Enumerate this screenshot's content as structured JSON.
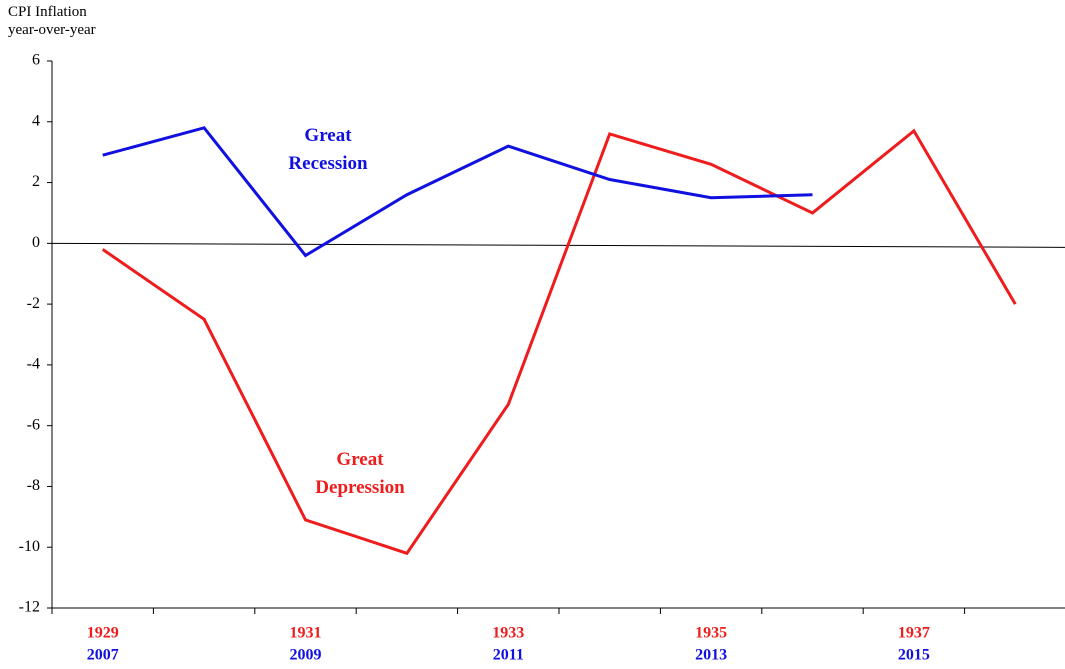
{
  "chart_data": {
    "type": "line",
    "ylabel": [
      "CPI Inflation",
      "year-over-year"
    ],
    "categories": [
      "1929",
      null,
      "1931",
      null,
      "1933",
      null,
      "1935",
      null,
      "1937",
      null
    ],
    "categories_secondary": [
      "2007",
      null,
      "2009",
      null,
      "2011",
      null,
      "2013",
      null,
      "2015",
      null
    ],
    "series": [
      {
        "name": "Great Depression",
        "color": "#ee1c1c",
        "values": [
          -0.2,
          -2.5,
          -9.1,
          -10.2,
          -5.3,
          3.6,
          2.6,
          1.0,
          3.7,
          -2.0
        ]
      },
      {
        "name": "Great Recession",
        "color": "#1010e0",
        "values": [
          2.9,
          3.8,
          -0.4,
          1.6,
          3.2,
          2.1,
          1.5,
          1.6,
          null,
          null
        ]
      }
    ],
    "ylim": [
      -12,
      6
    ],
    "yticks": [
      -12,
      -10,
      -8,
      -6,
      -4,
      -2,
      0,
      2,
      4,
      6
    ],
    "grid": false
  }
}
